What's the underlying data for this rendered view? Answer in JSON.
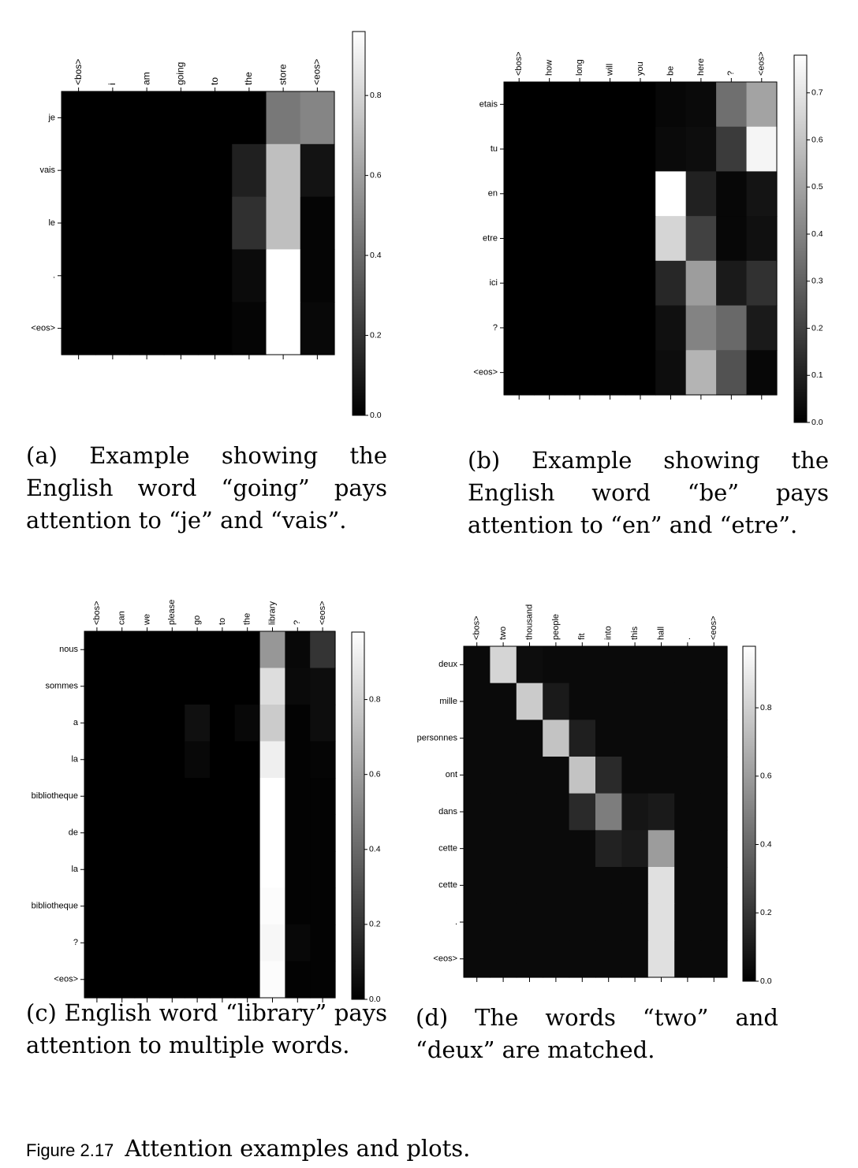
{
  "chart_data": [
    {
      "type": "heatmap",
      "x": [
        "<bos>",
        "i",
        "am",
        "going",
        "to",
        "the",
        "store",
        "<eos>"
      ],
      "y": [
        "je",
        "vais",
        "le",
        ".",
        "<eos>"
      ],
      "values": [
        [
          0,
          0,
          0,
          0,
          0,
          0,
          0.45,
          0.5
        ],
        [
          0,
          0,
          0,
          0,
          0,
          0.12,
          0.72,
          0.07
        ],
        [
          0,
          0,
          0,
          0,
          0,
          0.18,
          0.72,
          0.02
        ],
        [
          0,
          0,
          0,
          0,
          0,
          0.04,
          0.98,
          0.02
        ],
        [
          0,
          0,
          0,
          0,
          0,
          0.02,
          0.99,
          0.03
        ]
      ],
      "colorbar": {
        "min": 0.0,
        "max": 0.96,
        "ticks": [
          0.0,
          0.2,
          0.4,
          0.6,
          0.8
        ],
        "tick_labels": [
          "0.0",
          "0.2",
          "0.4",
          "0.6",
          "0.8"
        ]
      },
      "caption": "(a) Example showing the English word “going” pays attention to “je” and “vais”."
    },
    {
      "type": "heatmap",
      "x": [
        "<bos>",
        "how",
        "long",
        "will",
        "you",
        "be",
        "here",
        "?",
        "<eos>"
      ],
      "y": [
        "etais",
        "tu",
        "en",
        "etre",
        "ici",
        "?",
        "<eos>"
      ],
      "values": [
        [
          0,
          0,
          0,
          0,
          0,
          0.02,
          0.03,
          0.34,
          0.5
        ],
        [
          0,
          0,
          0,
          0,
          0,
          0.03,
          0.04,
          0.18,
          0.75
        ],
        [
          0,
          0,
          0,
          0,
          0,
          0.78,
          0.1,
          0.02,
          0.06
        ],
        [
          0,
          0,
          0,
          0,
          0,
          0.65,
          0.2,
          0.02,
          0.05
        ],
        [
          0,
          0,
          0,
          0,
          0,
          0.12,
          0.48,
          0.08,
          0.15
        ],
        [
          0,
          0,
          0,
          0,
          0,
          0.05,
          0.4,
          0.32,
          0.08
        ],
        [
          0,
          0,
          0,
          0,
          0,
          0.04,
          0.55,
          0.25,
          0.02
        ]
      ],
      "colorbar": {
        "min": 0.0,
        "max": 0.78,
        "ticks": [
          0.0,
          0.1,
          0.2,
          0.3,
          0.4,
          0.5,
          0.6,
          0.7
        ],
        "tick_labels": [
          "0.0",
          "0.1",
          "0.2",
          "0.3",
          "0.4",
          "0.5",
          "0.6",
          "0.7"
        ]
      },
      "caption": "(b) Example showing the English word “be” pays attention to “en” and “etre”."
    },
    {
      "type": "heatmap",
      "x": [
        "<bos>",
        "can",
        "we",
        "please",
        "go",
        "to",
        "the",
        "library",
        "?",
        "<eos>"
      ],
      "y": [
        "nous",
        "sommes",
        "a",
        "la",
        "bibliotheque",
        "de",
        "la",
        "bibliotheque",
        "?",
        "<eos>"
      ],
      "values": [
        [
          0,
          0,
          0,
          0,
          0,
          0,
          0,
          0.58,
          0.03,
          0.2
        ],
        [
          0,
          0,
          0,
          0,
          0,
          0,
          0,
          0.85,
          0.04,
          0.05
        ],
        [
          0,
          0,
          0,
          0,
          0.06,
          0,
          0.03,
          0.78,
          0.01,
          0.05
        ],
        [
          0,
          0,
          0,
          0,
          0.03,
          0,
          0,
          0.92,
          0.01,
          0.02
        ],
        [
          0,
          0,
          0,
          0,
          0,
          0,
          0,
          0.98,
          0.01,
          0.01
        ],
        [
          0,
          0,
          0,
          0,
          0,
          0,
          0,
          0.98,
          0.01,
          0.01
        ],
        [
          0,
          0,
          0,
          0,
          0,
          0,
          0,
          0.98,
          0.01,
          0.01
        ],
        [
          0,
          0,
          0,
          0,
          0,
          0,
          0,
          0.97,
          0.01,
          0.01
        ],
        [
          0,
          0,
          0,
          0,
          0,
          0,
          0,
          0.95,
          0.03,
          0.01
        ],
        [
          0,
          0,
          0,
          0,
          0,
          0,
          0,
          0.97,
          0.01,
          0.01
        ]
      ],
      "colorbar": {
        "min": 0.0,
        "max": 0.98,
        "ticks": [
          0.0,
          0.2,
          0.4,
          0.6,
          0.8
        ],
        "tick_labels": [
          "0.0",
          "0.2",
          "0.4",
          "0.6",
          "0.8"
        ]
      },
      "caption": "(c) English word “library” pays attention to multiple words."
    },
    {
      "type": "heatmap",
      "x": [
        "<bos>",
        "two",
        "thousand",
        "people",
        "fit",
        "into",
        "this",
        "hall",
        ".",
        "<eos>"
      ],
      "y": [
        "deux",
        "mille",
        "personnes",
        "ont",
        "dans",
        "cette",
        "cette",
        ".",
        "<eos>"
      ],
      "values": [
        [
          0.04,
          0.82,
          0.05,
          0.04,
          0.04,
          0.04,
          0.04,
          0.04,
          0.04,
          0.04
        ],
        [
          0.04,
          0.04,
          0.78,
          0.1,
          0.04,
          0.04,
          0.04,
          0.04,
          0.04,
          0.04
        ],
        [
          0.04,
          0.04,
          0.04,
          0.75,
          0.12,
          0.04,
          0.04,
          0.04,
          0.04,
          0.04
        ],
        [
          0.04,
          0.04,
          0.04,
          0.04,
          0.75,
          0.16,
          0.04,
          0.04,
          0.04,
          0.04
        ],
        [
          0.04,
          0.04,
          0.04,
          0.04,
          0.16,
          0.48,
          0.08,
          0.1,
          0.04,
          0.04
        ],
        [
          0.04,
          0.04,
          0.04,
          0.04,
          0.04,
          0.13,
          0.1,
          0.6,
          0.04,
          0.04
        ],
        [
          0.04,
          0.04,
          0.04,
          0.04,
          0.04,
          0.04,
          0.04,
          0.86,
          0.04,
          0.04
        ],
        [
          0.04,
          0.04,
          0.04,
          0.04,
          0.04,
          0.04,
          0.04,
          0.86,
          0.04,
          0.04
        ],
        [
          0.04,
          0.04,
          0.04,
          0.04,
          0.04,
          0.04,
          0.04,
          0.86,
          0.04,
          0.04
        ]
      ],
      "colorbar": {
        "min": 0.0,
        "max": 0.98,
        "ticks": [
          0.0,
          0.2,
          0.4,
          0.6,
          0.8
        ],
        "tick_labels": [
          "0.0",
          "0.2",
          "0.4",
          "0.6",
          "0.8"
        ]
      },
      "caption": "(d) The words “two” and “deux” are matched."
    }
  ],
  "figure_caption": {
    "label": "Figure 2.17",
    "text": "Attention examples and plots."
  }
}
